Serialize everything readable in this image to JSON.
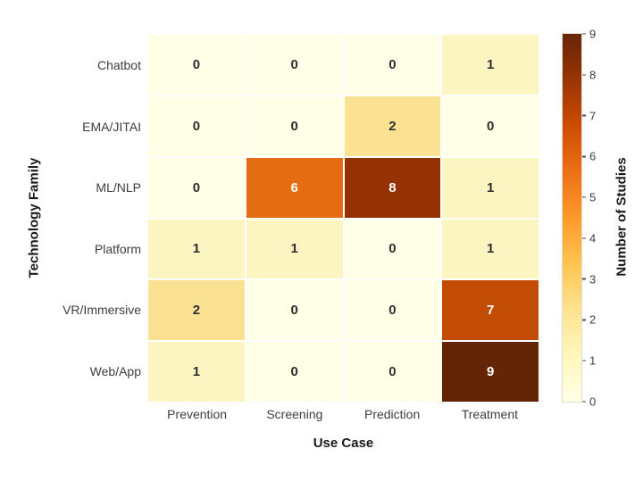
{
  "chart_data": {
    "type": "heatmap",
    "title": "",
    "xlabel": "Use Case",
    "ylabel": "Technology Family",
    "colorbar_label": "Number of Studies",
    "columns": [
      "Prevention",
      "Screening",
      "Prediction",
      "Treatment"
    ],
    "rows": [
      "Chatbot",
      "EMA/JITAI",
      "ML/NLP",
      "Platform",
      "VR/Immersive",
      "Web/App"
    ],
    "values": [
      [
        0,
        0,
        0,
        1
      ],
      [
        0,
        0,
        2,
        0
      ],
      [
        0,
        6,
        8,
        1
      ],
      [
        1,
        1,
        0,
        1
      ],
      [
        2,
        0,
        0,
        7
      ],
      [
        1,
        0,
        0,
        9
      ]
    ],
    "vmin": 0,
    "vmax": 9,
    "colorbar_ticks": [
      0,
      1,
      2,
      3,
      4,
      5,
      6,
      7,
      8,
      9
    ],
    "colormap": "YlOrBr",
    "colormap_stops": [
      "#ffffe5",
      "#fff7bc",
      "#fee391",
      "#fec44f",
      "#fe9929",
      "#ec7014",
      "#cc4c02",
      "#993404",
      "#662506"
    ],
    "value_colors": [
      "#fffee6",
      "#fdf5c1",
      "#fbe293",
      "#fdcf6e",
      "#fda936",
      "#f5821d",
      "#e66c11",
      "#c24c04",
      "#943204",
      "#642406"
    ],
    "dark_text_color": "#2e2e2e",
    "light_text_color": "#ffffff",
    "light_text_threshold": 6,
    "grid": false,
    "legend_position": "right-colorbar"
  }
}
